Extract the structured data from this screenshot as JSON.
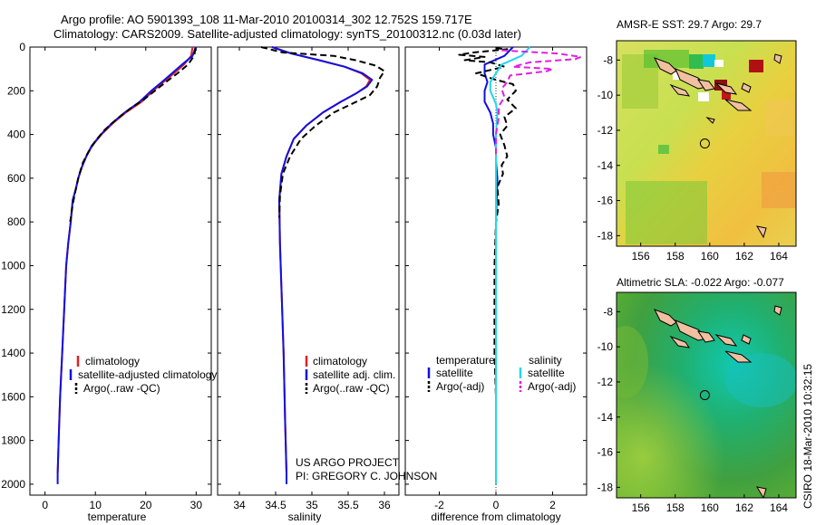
{
  "figure": {
    "title_line1": "Argo profile: AO 5901393_108 11-Mar-2010 20100314_302 12.752S 159.717E",
    "title_line2": "Climatology: CARS2009. Satellite-adjusted climatology: synTS_20100312.nc (0.03d later)",
    "credit_line1": "US ARGO PROJECT",
    "credit_line2": "PI: GREGORY C. JOHNSON",
    "side_stamp": "CSIRO 18-Mar-2010 10:32:15"
  },
  "colors": {
    "climatology": "#e02020",
    "satellite": "#1010e0",
    "argo": "#000000",
    "satellite_sal": "#20d8e8",
    "argo_sal": "#e020e0"
  },
  "chart_data": [
    {
      "type": "line",
      "id": "temperature",
      "xlabel": "temperature",
      "ylabel": "",
      "xlim": [
        -3,
        33
      ],
      "ylim": [
        2050,
        0
      ],
      "x_ticks": [
        "0",
        "10",
        "20",
        "30"
      ],
      "y_ticks": [
        "0",
        "200",
        "400",
        "600",
        "800",
        "1000",
        "1200",
        "1400",
        "1600",
        "1800",
        "2000"
      ],
      "legend": [
        "climatology",
        "satellite-adjusted climatology",
        "Argo(..raw -QC)"
      ],
      "series": [
        {
          "name": "climatology",
          "color_key": "climatology",
          "dash": false,
          "points": [
            [
              29.3,
              0
            ],
            [
              29.0,
              40
            ],
            [
              27.6,
              80
            ],
            [
              25.6,
              120
            ],
            [
              23.5,
              160
            ],
            [
              21.5,
              200
            ],
            [
              19.2,
              250
            ],
            [
              16.0,
              300
            ],
            [
              13.4,
              350
            ],
            [
              11.2,
              400
            ],
            [
              9.4,
              450
            ],
            [
              8.2,
              500
            ],
            [
              7.3,
              550
            ],
            [
              6.6,
              600
            ],
            [
              6.1,
              650
            ],
            [
              5.5,
              700
            ],
            [
              5.1,
              800
            ],
            [
              4.6,
              900
            ],
            [
              4.2,
              1000
            ],
            [
              3.8,
              1200
            ],
            [
              3.4,
              1400
            ],
            [
              3.0,
              1600
            ],
            [
              2.7,
              1800
            ],
            [
              2.5,
              1950
            ]
          ]
        },
        {
          "name": "satellite-adjusted climatology",
          "color_key": "satellite",
          "dash": false,
          "points": [
            [
              29.9,
              0
            ],
            [
              29.3,
              40
            ],
            [
              27.2,
              80
            ],
            [
              25.2,
              120
            ],
            [
              23.2,
              160
            ],
            [
              21.1,
              200
            ],
            [
              18.8,
              250
            ],
            [
              15.8,
              300
            ],
            [
              13.2,
              350
            ],
            [
              11.1,
              400
            ],
            [
              9.3,
              450
            ],
            [
              8.2,
              500
            ],
            [
              7.3,
              550
            ],
            [
              6.6,
              600
            ],
            [
              6.1,
              650
            ],
            [
              5.5,
              700
            ],
            [
              5.1,
              800
            ],
            [
              4.6,
              900
            ],
            [
              4.2,
              1000
            ],
            [
              3.8,
              1200
            ],
            [
              3.4,
              1400
            ],
            [
              3.0,
              1600
            ],
            [
              2.7,
              1800
            ],
            [
              2.5,
              1950
            ],
            [
              2.5,
              2000
            ]
          ]
        },
        {
          "name": "Argo(..raw -QC)",
          "color_key": "argo",
          "dash": true,
          "points": [
            [
              29.9,
              5
            ],
            [
              29.6,
              40
            ],
            [
              28.4,
              80
            ],
            [
              26.3,
              120
            ],
            [
              24.0,
              160
            ],
            [
              21.8,
              200
            ],
            [
              19.6,
              240
            ],
            [
              17.0,
              280
            ],
            [
              14.2,
              330
            ],
            [
              11.8,
              380
            ],
            [
              10.0,
              430
            ],
            [
              8.6,
              480
            ],
            [
              7.5,
              530
            ],
            [
              6.7,
              590
            ],
            [
              6.1,
              650
            ],
            [
              5.5,
              720
            ],
            [
              5.0,
              800
            ]
          ]
        }
      ]
    },
    {
      "type": "line",
      "id": "salinity",
      "xlabel": "salinity",
      "ylabel": "",
      "xlim": [
        33.7,
        36.2
      ],
      "ylim": [
        2050,
        0
      ],
      "x_ticks": [
        "34",
        "34.5",
        "35",
        "35.5",
        "36"
      ],
      "legend": [
        "climatology",
        "satellite adj. clim.",
        "Argo(..raw -QC)"
      ],
      "series": [
        {
          "name": "climatology",
          "color_key": "climatology",
          "dash": false,
          "points": [
            [
              34.45,
              0
            ],
            [
              34.72,
              30
            ],
            [
              35.1,
              60
            ],
            [
              35.45,
              90
            ],
            [
              35.68,
              120
            ],
            [
              35.8,
              150
            ],
            [
              35.75,
              180
            ],
            [
              35.62,
              210
            ],
            [
              35.4,
              250
            ],
            [
              35.15,
              300
            ],
            [
              34.92,
              360
            ],
            [
              34.75,
              420
            ],
            [
              34.65,
              500
            ],
            [
              34.58,
              580
            ],
            [
              34.55,
              700
            ],
            [
              34.56,
              900
            ],
            [
              34.58,
              1100
            ],
            [
              34.61,
              1400
            ],
            [
              34.63,
              1700
            ],
            [
              34.65,
              1950
            ]
          ]
        },
        {
          "name": "satellite adj. clim.",
          "color_key": "satellite",
          "dash": false,
          "points": [
            [
              34.45,
              0
            ],
            [
              34.72,
              30
            ],
            [
              35.1,
              60
            ],
            [
              35.45,
              90
            ],
            [
              35.7,
              120
            ],
            [
              35.83,
              150
            ],
            [
              35.76,
              180
            ],
            [
              35.62,
              210
            ],
            [
              35.4,
              250
            ],
            [
              35.15,
              300
            ],
            [
              34.92,
              360
            ],
            [
              34.75,
              420
            ],
            [
              34.65,
              500
            ],
            [
              34.58,
              580
            ],
            [
              34.55,
              700
            ],
            [
              34.56,
              900
            ],
            [
              34.58,
              1100
            ],
            [
              34.61,
              1400
            ],
            [
              34.63,
              1700
            ],
            [
              34.65,
              1950
            ],
            [
              34.65,
              2000
            ]
          ]
        },
        {
          "name": "Argo(..raw -QC)",
          "color_key": "argo",
          "dash": true,
          "points": [
            [
              34.3,
              0
            ],
            [
              34.48,
              15
            ],
            [
              34.6,
              25
            ],
            [
              35.3,
              40
            ],
            [
              35.6,
              60
            ],
            [
              35.88,
              85
            ],
            [
              36.0,
              110
            ],
            [
              35.94,
              140
            ],
            [
              35.9,
              180
            ],
            [
              35.8,
              220
            ],
            [
              35.55,
              260
            ],
            [
              35.3,
              300
            ],
            [
              35.05,
              360
            ],
            [
              34.85,
              420
            ],
            [
              34.7,
              500
            ],
            [
              34.6,
              580
            ],
            [
              34.56,
              680
            ],
            [
              34.55,
              780
            ]
          ]
        }
      ]
    },
    {
      "type": "line",
      "id": "difference",
      "xlabel": "difference from climatology",
      "ylabel": "",
      "xlim": [
        -3.2,
        3.2
      ],
      "ylim": [
        2050,
        0
      ],
      "x_ticks": [
        "-2",
        "0",
        "2"
      ],
      "legend_left_title": "temperature",
      "legend_right_title": "salinity",
      "legend": [
        "satellite",
        "Argo(-adj)",
        "satellite",
        "Argo(-adj)"
      ],
      "series": [
        {
          "name": "temperature satellite",
          "color_key": "satellite",
          "dash": false,
          "points": [
            [
              0.6,
              0
            ],
            [
              0.3,
              40
            ],
            [
              -0.4,
              80
            ],
            [
              -0.4,
              120
            ],
            [
              -0.3,
              160
            ],
            [
              -0.4,
              200
            ],
            [
              -0.4,
              250
            ],
            [
              -0.2,
              300
            ],
            [
              -0.1,
              350
            ],
            [
              -0.1,
              400
            ],
            [
              0.0,
              460
            ],
            [
              0.0,
              520
            ],
            [
              0.05,
              600
            ],
            [
              0.0,
              800
            ],
            [
              0.0,
              1200
            ],
            [
              0.0,
              1600
            ],
            [
              0.0,
              2000
            ]
          ]
        },
        {
          "name": "temperature Argo(-adj)",
          "color_key": "argo",
          "dash": true,
          "points": [
            [
              0.0,
              5
            ],
            [
              0.4,
              10
            ],
            [
              -0.8,
              25
            ],
            [
              -1.3,
              35
            ],
            [
              -0.4,
              45
            ],
            [
              -1.1,
              60
            ],
            [
              -0.2,
              70
            ],
            [
              0.3,
              90
            ],
            [
              -0.7,
              120
            ],
            [
              0.0,
              150
            ],
            [
              0.6,
              170
            ],
            [
              0.7,
              200
            ],
            [
              0.4,
              240
            ],
            [
              0.7,
              280
            ],
            [
              0.3,
              320
            ],
            [
              0.4,
              360
            ],
            [
              0.15,
              400
            ],
            [
              0.3,
              450
            ],
            [
              0.4,
              500
            ],
            [
              0.2,
              540
            ],
            [
              0.25,
              580
            ],
            [
              0.05,
              640
            ],
            [
              0.1,
              720
            ],
            [
              0.0,
              800
            ],
            [
              -0.05,
              1000
            ],
            [
              -0.05,
              1200
            ],
            [
              -0.05,
              1400
            ],
            [
              0.0,
              1600
            ]
          ]
        },
        {
          "name": "salinity satellite",
          "color_key": "satellite_sal",
          "dash": false,
          "points": [
            [
              1.2,
              0
            ],
            [
              0.9,
              40
            ],
            [
              0.2,
              80
            ],
            [
              0.0,
              120
            ],
            [
              -0.2,
              160
            ],
            [
              -0.2,
              200
            ],
            [
              0.0,
              260
            ],
            [
              0.05,
              300
            ],
            [
              0.0,
              400
            ],
            [
              0.0,
              600
            ],
            [
              0.0,
              900
            ],
            [
              0.0,
              1300
            ],
            [
              0.0,
              1700
            ],
            [
              0.0,
              2000
            ]
          ]
        },
        {
          "name": "salinity Argo(-adj)",
          "color_key": "argo_sal",
          "dash": true,
          "points": [
            [
              0.2,
              15
            ],
            [
              2.2,
              30
            ],
            [
              3.0,
              45
            ],
            [
              2.8,
              55
            ],
            [
              1.2,
              70
            ],
            [
              0.6,
              90
            ],
            [
              2.0,
              100
            ],
            [
              1.8,
              110
            ],
            [
              0.5,
              130
            ],
            [
              0.4,
              160
            ],
            [
              0.2,
              190
            ],
            [
              0.3,
              230
            ],
            [
              0.1,
              270
            ],
            [
              0.1,
              320
            ],
            [
              0.0,
              400
            ],
            [
              0.0,
              500
            ]
          ]
        }
      ]
    },
    {
      "type": "heatmap",
      "id": "sst_map",
      "title": "AMSR-E SST: 29.7 Argo: 29.7",
      "x_ticks": [
        "156",
        "158",
        "160",
        "162",
        "164"
      ],
      "y_ticks": [
        "-8",
        "-10",
        "-12",
        "-14",
        "-16",
        "-18"
      ],
      "xlim": [
        154.6,
        165.0
      ],
      "ylim": [
        -18.6,
        -6.9
      ],
      "argo_position": [
        159.717,
        -12.752
      ]
    },
    {
      "type": "heatmap",
      "id": "sla_map",
      "title": "Altimetric SLA: -0.022 Argo: -0.077",
      "x_ticks": [
        "156",
        "158",
        "160",
        "162",
        "164"
      ],
      "y_ticks": [
        "-8",
        "-10",
        "-12",
        "-14",
        "-16",
        "-18"
      ],
      "xlim": [
        154.6,
        165.0
      ],
      "ylim": [
        -18.6,
        -6.9
      ],
      "argo_position": [
        159.717,
        -12.752
      ]
    }
  ]
}
